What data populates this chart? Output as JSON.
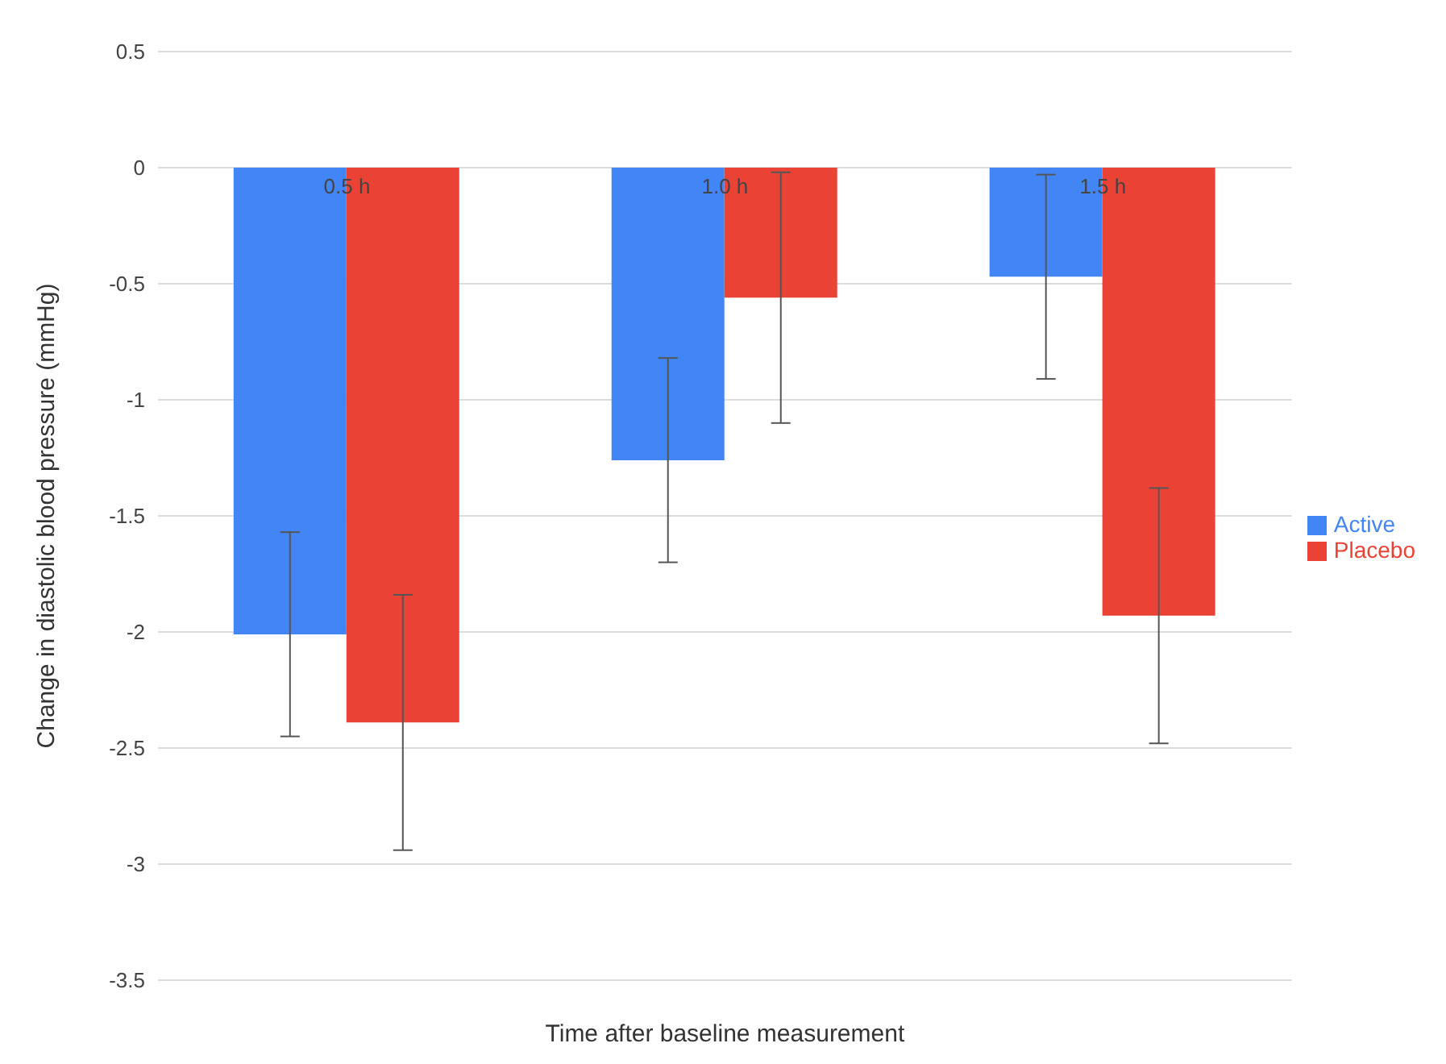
{
  "chart_data": {
    "type": "bar",
    "xlabel": "Time after baseline measurement",
    "ylabel": "Change in diastolic blood pressure (mmHg)",
    "categories": [
      "0.5 h",
      "1.0 h",
      "1.5 h"
    ],
    "series": [
      {
        "name": "Active",
        "color": "#4285f4",
        "values": [
          -2.01,
          -1.26,
          -0.47
        ],
        "errors": [
          0.44,
          0.44,
          0.44
        ]
      },
      {
        "name": "Placebo",
        "color": "#ea4335",
        "values": [
          -2.39,
          -0.56,
          -1.93
        ],
        "errors": [
          0.55,
          0.54,
          0.55
        ]
      }
    ],
    "ylim": [
      -3.5,
      0.5
    ],
    "yticks": [
      -3.5,
      -3,
      -2.5,
      -2,
      -1.5,
      -1,
      -0.5,
      0,
      0.5
    ],
    "grid": "y",
    "legend": "right"
  }
}
